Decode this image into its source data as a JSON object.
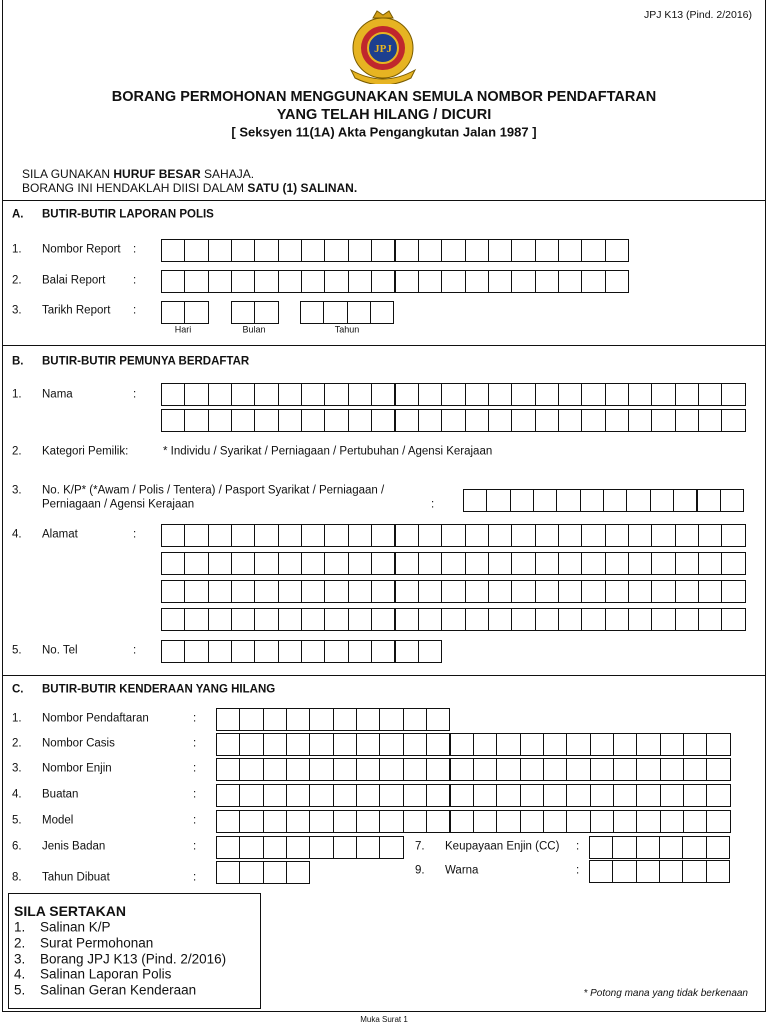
{
  "header": {
    "form_code": "JPJ K13 (Pind. 2/2016)",
    "title_line1": "BORANG PERMOHONAN MENGGUNAKAN SEMULA NOMBOR PENDAFTARAN",
    "title_line2": "YANG TELAH HILANG / DICURI",
    "title_line3": "[ Seksyen 11(1A) Akta Pengangkutan Jalan 1987 ]"
  },
  "instructions": [
    [
      "SILA GUNAKAN ",
      "HURUF BESAR",
      " SAHAJA."
    ],
    [
      "BORANG INI HENDAKLAH DIISI DALAM ",
      "SATU (1) SALINAN."
    ]
  ],
  "sections": [
    {
      "letter": "A.",
      "title": "BUTIR-BUTIR LAPORAN POLIS",
      "fields": [
        {
          "number": "1.",
          "label": "Nombor Report",
          "colon": ":"
        },
        {
          "number": "2.",
          "label": "Balai Report",
          "colon": ":"
        },
        {
          "number": "3.",
          "label": "Tarikh Report",
          "colon": ":"
        }
      ],
      "date_parts": [
        "Hari",
        "Bulan",
        "Tahun"
      ]
    },
    {
      "letter": "B.",
      "title": "BUTIR-BUTIR PEMUNYA BERDAFTAR",
      "fields": [
        {
          "number": "1.",
          "label": "Nama",
          "colon": ":"
        },
        {
          "number": "2.",
          "label": "Kategori Pemilik:",
          "options": "* Individu / Syarikat / Perniagaan / Pertubuhan / Agensi Kerajaan"
        },
        {
          "number": "3.",
          "label_lines": [
            "No. K/P* (*Awam / Polis / Tentera) / Pasport Syarikat / Perniagaan /",
            "Perniagaan / Agensi Kerajaan"
          ],
          "colon": ":"
        },
        {
          "number": "4.",
          "label": "Alamat",
          "colon": ":"
        },
        {
          "number": "5.",
          "label": "No. Tel",
          "colon": ":"
        }
      ]
    },
    {
      "letter": "C.",
      "title": "BUTIR-BUTIR KENDERAAN YANG HILANG",
      "fields": [
        {
          "number": "1.",
          "label": "Nombor Pendaftaran",
          "colon": ":"
        },
        {
          "number": "2.",
          "label": "Nombor Casis",
          "colon": ":"
        },
        {
          "number": "3.",
          "label": "Nombor Enjin",
          "colon": ":"
        },
        {
          "number": "4.",
          "label": "Buatan",
          "colon": ":"
        },
        {
          "number": "5.",
          "label": "Model",
          "colon": ":"
        },
        {
          "number": "6.",
          "label": "Jenis Badan",
          "colon": ":"
        },
        {
          "number": "7.",
          "label": "Keupayaan Enjin (CC)",
          "colon": ":"
        },
        {
          "number": "8.",
          "label": "Tahun Dibuat",
          "colon": ":"
        },
        {
          "number": "9.",
          "label": "Warna",
          "colon": ":"
        }
      ]
    }
  ],
  "attachments": {
    "title": "SILA SERTAKAN",
    "items": [
      {
        "number": "1.",
        "text": "Salinan K/P"
      },
      {
        "number": "2.",
        "text": "Surat Permohonan"
      },
      {
        "number": "3.",
        "text": "Borang JPJ K13 (Pind. 2/2016)"
      },
      {
        "number": "4.",
        "text": "Salinan Laporan Polis"
      },
      {
        "number": "5.",
        "text": "Salinan Geran Kenderaan"
      }
    ]
  },
  "footnote": "* Potong mana yang tidak berkenaan",
  "page_number": "Muka Surat 1"
}
